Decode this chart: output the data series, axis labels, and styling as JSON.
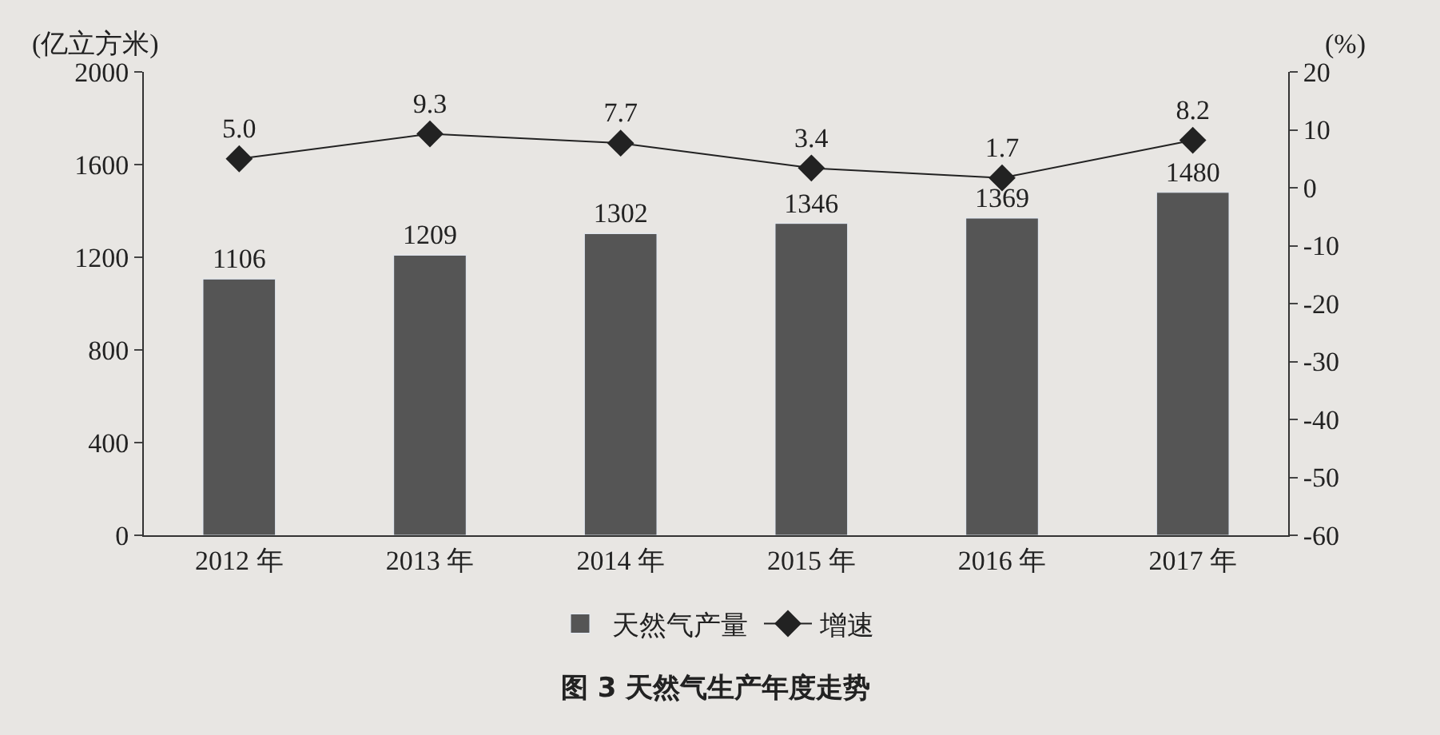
{
  "chart_data": {
    "type": "bar",
    "title": "图 3 天然气生产年度走势",
    "ylabel": "(亿立方米)",
    "y2label": "(%)",
    "categories": [
      "2012 年",
      "2013 年",
      "2014 年",
      "2015 年",
      "2016 年",
      "2017 年"
    ],
    "series": [
      {
        "name": "天然气产量",
        "color": "#555555",
        "values": [
          1106,
          1209,
          1302,
          1346,
          1369,
          1480
        ]
      },
      {
        "name": "增速",
        "type": "line",
        "axis": "y2",
        "color": "#222222",
        "marker": "diamond",
        "values": [
          5.0,
          9.3,
          7.7,
          3.4,
          1.7,
          8.2
        ],
        "value_labels": [
          "5.0",
          "9.3",
          "7.7",
          "3.4",
          "1.7",
          "8.2"
        ]
      }
    ],
    "ylim": [
      0,
      2000
    ],
    "yticks": [
      0,
      400,
      800,
      1200,
      1600,
      2000
    ],
    "y2lim": [
      -60,
      20
    ],
    "y2ticks": [
      -60,
      -50,
      -40,
      -30,
      -20,
      -10,
      0,
      10,
      20
    ],
    "data_labels": true,
    "grid": false,
    "legend": "bottom"
  }
}
